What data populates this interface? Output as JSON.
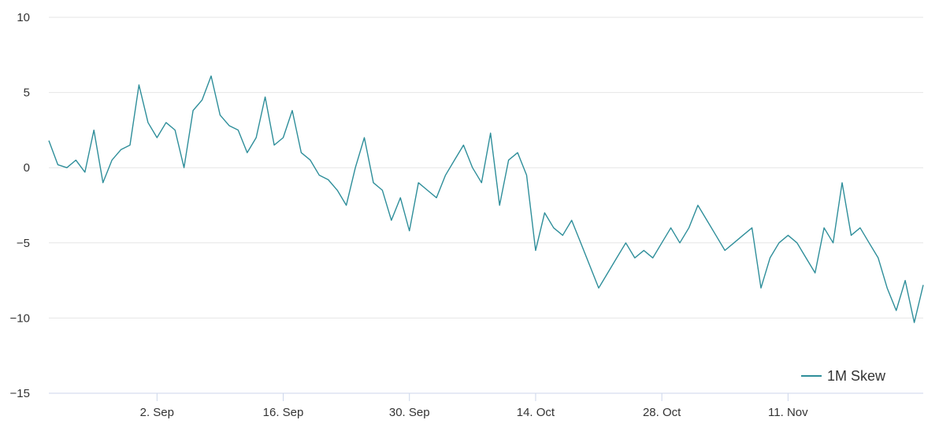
{
  "chart_data": {
    "type": "line",
    "title": "",
    "xlabel": "",
    "ylabel": "",
    "ylim": [
      -15,
      10
    ],
    "yticks": [
      10,
      5,
      0,
      -5,
      -10,
      -15
    ],
    "ytick_labels": [
      "10",
      "5",
      "0",
      "−5",
      "−10",
      "−15"
    ],
    "xlim_days": [
      0,
      97
    ],
    "xticks": [
      {
        "day": 12,
        "label": "2. Sep"
      },
      {
        "day": 26,
        "label": "16. Sep"
      },
      {
        "day": 40,
        "label": "30. Sep"
      },
      {
        "day": 54,
        "label": "14. Oct"
      },
      {
        "day": 68,
        "label": "28. Oct"
      },
      {
        "day": 82,
        "label": "11. Nov"
      }
    ],
    "grid": true,
    "legend": {
      "position": "bottom-right",
      "entries": [
        "1M Skew"
      ]
    },
    "colors": {
      "series": "#2e8e9a",
      "grid": "#e6e6e6",
      "axis": "#ccd6eb"
    },
    "series": [
      {
        "name": "1M Skew",
        "x_days": [
          0,
          1,
          2,
          3,
          4,
          5,
          6,
          7,
          8,
          9,
          10,
          11,
          12,
          13,
          14,
          15,
          16,
          17,
          18,
          19,
          20,
          21,
          22,
          23,
          24,
          25,
          26,
          27,
          28,
          29,
          30,
          31,
          32,
          33,
          34,
          35,
          36,
          37,
          38,
          39,
          40,
          41,
          42,
          43,
          44,
          45,
          46,
          47,
          48,
          49,
          50,
          51,
          52,
          53,
          54,
          55,
          56,
          57,
          58,
          59,
          60,
          61,
          62,
          63,
          64,
          65,
          66,
          67,
          68,
          69,
          70,
          71,
          72,
          73,
          74,
          75,
          76,
          77,
          78,
          79,
          80,
          81,
          82,
          83,
          84,
          85,
          86,
          87,
          88,
          89,
          90,
          91,
          92,
          93,
          94,
          95,
          96,
          97
        ],
        "values": [
          1.8,
          0.2,
          0.0,
          0.5,
          -0.3,
          2.5,
          -1.0,
          0.5,
          1.2,
          1.5,
          5.5,
          3.0,
          2.0,
          3.0,
          2.5,
          0.0,
          3.8,
          4.5,
          6.1,
          3.5,
          2.8,
          2.5,
          1.0,
          2.0,
          4.7,
          1.5,
          2.0,
          3.8,
          1.0,
          0.5,
          -0.5,
          -0.8,
          -1.5,
          -2.5,
          0.0,
          2.0,
          -1.0,
          -1.5,
          -3.5,
          -2.0,
          -4.2,
          -1.0,
          -1.5,
          -2.0,
          -0.5,
          0.5,
          1.5,
          0.0,
          -1.0,
          2.3,
          -2.5,
          0.5,
          1.0,
          -0.5,
          -5.5,
          -3.0,
          -4.0,
          -4.5,
          -3.5,
          -5.0,
          -6.5,
          -8.0,
          -7.0,
          -6.0,
          -5.0,
          -6.0,
          -5.5,
          -6.0,
          -5.0,
          -4.0,
          -5.0,
          -4.0,
          -2.5,
          -3.5,
          -4.5,
          -5.5,
          -5.0,
          -4.5,
          -4.0,
          -8.0,
          -6.0,
          -5.0,
          -4.5,
          -5.0,
          -6.0,
          -7.0,
          -4.0,
          -5.0,
          -1.0,
          -4.5,
          -4.0,
          -5.0,
          -6.0,
          -8.0,
          -9.5,
          -7.5,
          -10.3,
          -7.8
        ]
      }
    ]
  }
}
